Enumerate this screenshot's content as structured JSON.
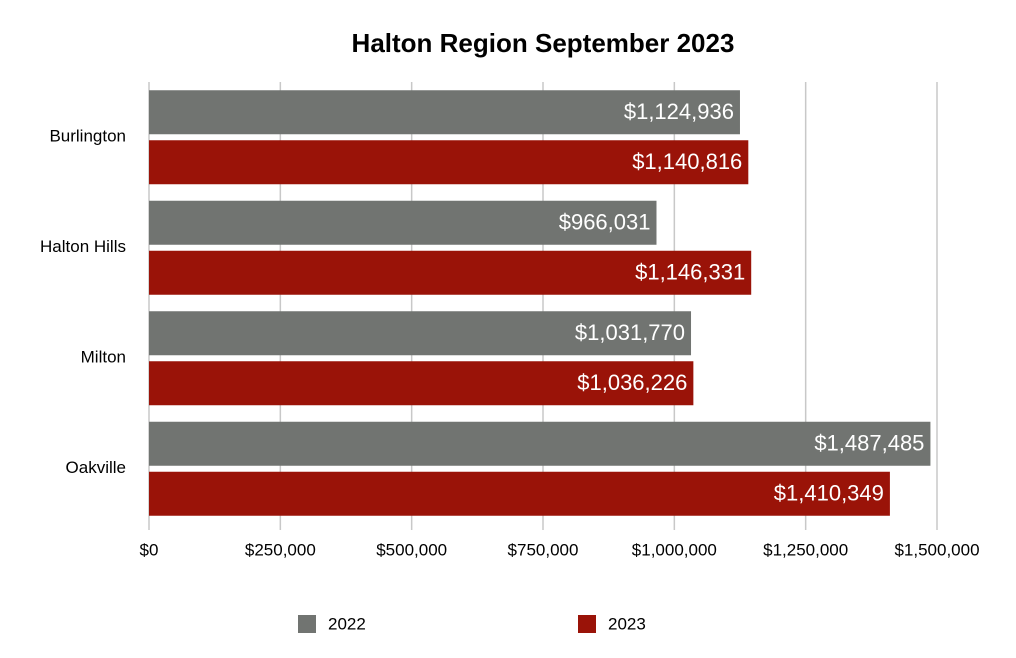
{
  "chart_data": {
    "type": "bar",
    "orientation": "horizontal",
    "title": "Halton Region September 2023",
    "categories": [
      "Burlington",
      "Halton Hills",
      "Milton",
      "Oakville"
    ],
    "series": [
      {
        "name": "2022",
        "color": "#717471",
        "values": [
          1124936,
          966031,
          1031770,
          1487485
        ],
        "value_labels": [
          "$1,124,936",
          "$966,031",
          "$1,031,770",
          "$1,487,485"
        ]
      },
      {
        "name": "2023",
        "color": "#9a1308",
        "values": [
          1140816,
          1146331,
          1036226,
          1410349
        ],
        "value_labels": [
          "$1,140,816",
          "$1,146,331",
          "$1,036,226",
          "$1,410,349"
        ]
      }
    ],
    "xlim": [
      0,
      1500000
    ],
    "xticks": [
      {
        "value": 0,
        "label": "$0"
      },
      {
        "value": 250000,
        "label": "$250,000"
      },
      {
        "value": 500000,
        "label": "$500,000"
      },
      {
        "value": 750000,
        "label": "$750,000"
      },
      {
        "value": 1000000,
        "label": "$1,000,000"
      },
      {
        "value": 1250000,
        "label": "$1,250,000"
      },
      {
        "value": 1500000,
        "label": "$1,500,000"
      }
    ],
    "grid": true,
    "legend": "bottom"
  }
}
